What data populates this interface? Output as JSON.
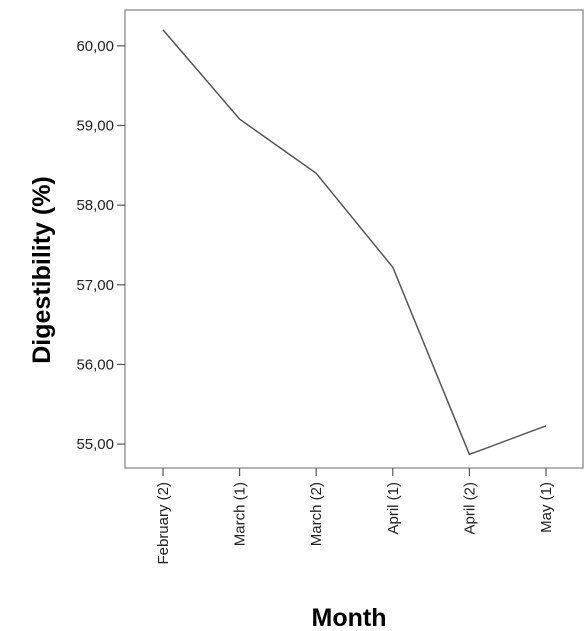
{
  "chart_data": {
    "type": "line",
    "categories": [
      "February (2)",
      "March (1)",
      "March (2)",
      "April (1)",
      "April (2)",
      "May (1)"
    ],
    "series": [
      {
        "values": [
          60.2,
          59.08,
          58.4,
          57.22,
          54.87,
          55.23
        ]
      }
    ],
    "xlabel": "Month",
    "ylabel": "Digestibility (%)",
    "ylim": [
      54.7,
      60.45
    ],
    "yticks": [
      "55,00",
      "56,00",
      "57,00",
      "58,00",
      "59,00",
      "60,00"
    ],
    "ytick_values": [
      55,
      56,
      57,
      58,
      59,
      60
    ],
    "grid": false,
    "line_color": "#555555"
  }
}
